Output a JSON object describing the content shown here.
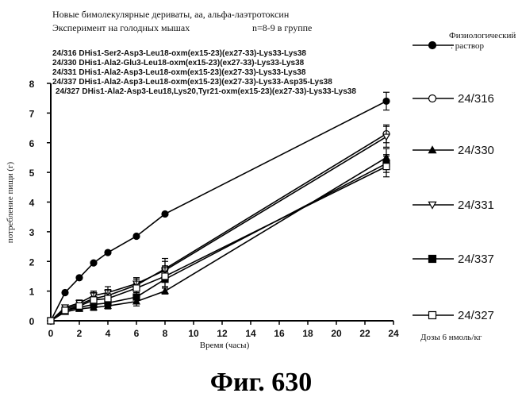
{
  "header": {
    "title_line1": "Новые бимолекулярные дериваты, аа, альфа-лаэтротоксин",
    "title_line2": "Эксперимент на голодных мышах",
    "group_note": "n=8-9 в группе"
  },
  "compounds": [
    "24/316 DHis1-Ser2-Asp3-Leu18-oxm(ex15-23)(ex27-33)-Lys33-Lys38",
    "24/330 DHis1-Ala2-Glu3-Leu18-oxm(ex15-23)(ex27-33)-Lys33-Lys38",
    "24/331 DHis1-Ala2-Asp3-Leu18-oxm(ex15-23)(ex27-33)-Lys33-Lys38",
    "24/337 DHis1-Ala2-Asp3-Leu18-oxm(ex15-23)(ex27-33)-Lys33-Asp35-Lys38",
    "24/327 DHis1-Ala2-Asp3-Leu18,Lys20,Tyr21-oxm(ex15-23)(ex27-33)-Lys33-Lys38"
  ],
  "dose_note": "Дозы 6 нмоль/кг",
  "figure_label": "Фиг. 630",
  "chart_data": {
    "type": "line",
    "xlabel": "Время (часы)",
    "ylabel": "потребление пищи (г)",
    "xlim": [
      0,
      24
    ],
    "ylim": [
      0,
      8
    ],
    "xticks": [
      0,
      2,
      4,
      6,
      8,
      10,
      12,
      14,
      16,
      18,
      20,
      22,
      24
    ],
    "yticks": [
      0,
      1,
      2,
      3,
      4,
      5,
      6,
      7,
      8
    ],
    "grid": false,
    "legend_position": "right",
    "series": [
      {
        "name": "Физиологический раствор",
        "marker": "filled-circle",
        "x": [
          0,
          1,
          2,
          3,
          4,
          6,
          8,
          23.5
        ],
        "y": [
          0,
          0.95,
          1.45,
          1.95,
          2.3,
          2.85,
          3.6,
          7.4
        ],
        "err": [
          0,
          0,
          0,
          0,
          0,
          0,
          0,
          0.3
        ]
      },
      {
        "name": "24/316",
        "marker": "open-circle",
        "x": [
          0,
          1,
          2,
          3,
          4,
          6,
          8,
          23.5
        ],
        "y": [
          0,
          0.4,
          0.55,
          0.75,
          0.85,
          1.2,
          1.75,
          6.3
        ],
        "err": [
          0,
          0.05,
          0.1,
          0.2,
          0.2,
          0.25,
          0.35,
          0.3
        ]
      },
      {
        "name": "24/330",
        "marker": "filled-triangle",
        "x": [
          0,
          1,
          2,
          3,
          4,
          6,
          8,
          23.5
        ],
        "y": [
          0,
          0.3,
          0.4,
          0.45,
          0.5,
          0.65,
          1.0,
          5.5
        ],
        "err": [
          0,
          0.05,
          0.05,
          0.1,
          0.1,
          0.15,
          0.1,
          0.3
        ]
      },
      {
        "name": "24/331",
        "marker": "open-triangle-down",
        "x": [
          0,
          1,
          2,
          3,
          4,
          6,
          8,
          23.5
        ],
        "y": [
          0,
          0.45,
          0.6,
          0.85,
          0.95,
          1.25,
          1.7,
          6.2
        ],
        "err": [
          0,
          0.05,
          0.1,
          0.15,
          0.2,
          0.2,
          0.3,
          0.35
        ]
      },
      {
        "name": "24/337",
        "marker": "filled-square",
        "x": [
          0,
          1,
          2,
          3,
          4,
          6,
          8,
          23.5
        ],
        "y": [
          0,
          0.35,
          0.45,
          0.55,
          0.6,
          0.8,
          1.4,
          5.3
        ],
        "err": [
          0,
          0.05,
          0.1,
          0.15,
          0.15,
          0.2,
          0.25,
          0.3
        ]
      },
      {
        "name": "24/327",
        "marker": "open-square",
        "x": [
          0,
          1,
          2,
          3,
          4,
          6,
          8,
          23.5
        ],
        "y": [
          0,
          0.35,
          0.5,
          0.7,
          0.75,
          1.1,
          1.5,
          5.2
        ],
        "err": [
          0,
          0.05,
          0.1,
          0.3,
          0.3,
          0.3,
          0.35,
          0.35
        ]
      }
    ]
  }
}
